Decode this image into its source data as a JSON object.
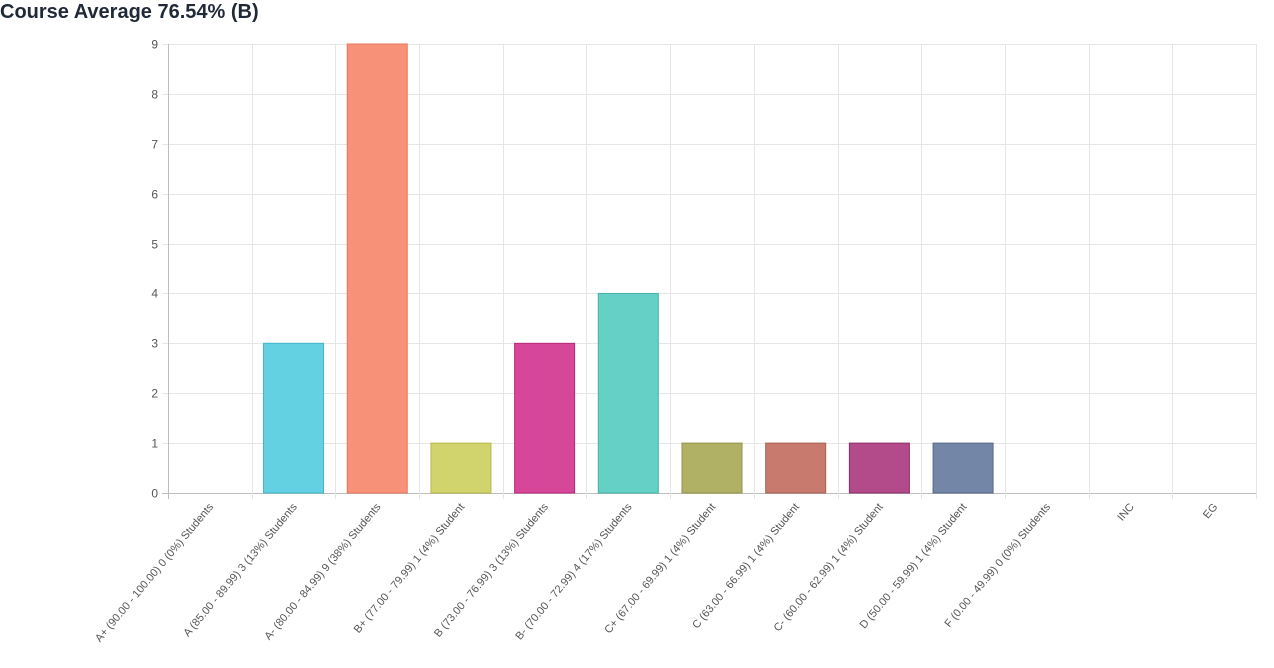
{
  "title": "Course Average 76.54% (B)",
  "chart_data": {
    "type": "bar",
    "title": "Course Average 76.54% (B)",
    "xlabel": "",
    "ylabel": "",
    "ylim": [
      0,
      9
    ],
    "yticks": [
      0,
      1,
      2,
      3,
      4,
      5,
      6,
      7,
      8,
      9
    ],
    "grid": true,
    "categories": [
      "A+ (90.00 - 100.00) 0 (0%) Students",
      "A (85.00 - 89.99) 3 (13%) Students",
      "A- (80.00 - 84.99) 9 (38%) Students",
      "B+ (77.00 - 79.99) 1 (4%) Student",
      "B (73.00 - 76.99) 3 (13%) Students",
      "B- (70.00 - 72.99) 4 (17%) Students",
      "C+ (67.00 - 69.99) 1 (4%) Student",
      "C (63.00 - 66.99) 1 (4%) Student",
      "C- (60.00 - 62.99) 1 (4%) Student",
      "D (50.00 - 59.99) 1 (4%) Student",
      "F (0.00 - 49.99) 0 (0%) Students",
      "INC",
      "EG"
    ],
    "values": [
      0,
      3,
      9,
      1,
      3,
      4,
      1,
      1,
      1,
      1,
      0,
      0,
      0
    ],
    "colors": [
      "#5b9bd5",
      "#64d1e3",
      "#f79177",
      "#d1d36c",
      "#d64799",
      "#65d0c6",
      "#b0b164",
      "#c87a6e",
      "#b34a89",
      "#7486a8",
      "#999999",
      "#999999",
      "#999999"
    ],
    "borderColors": [
      "#3f7fb8",
      "#3fb6c9",
      "#e8755a",
      "#b8b94a",
      "#b8297c",
      "#45b3a8",
      "#949545",
      "#a95d51",
      "#8f2e6a",
      "#56688b",
      "#777777",
      "#777777",
      "#777777"
    ]
  }
}
